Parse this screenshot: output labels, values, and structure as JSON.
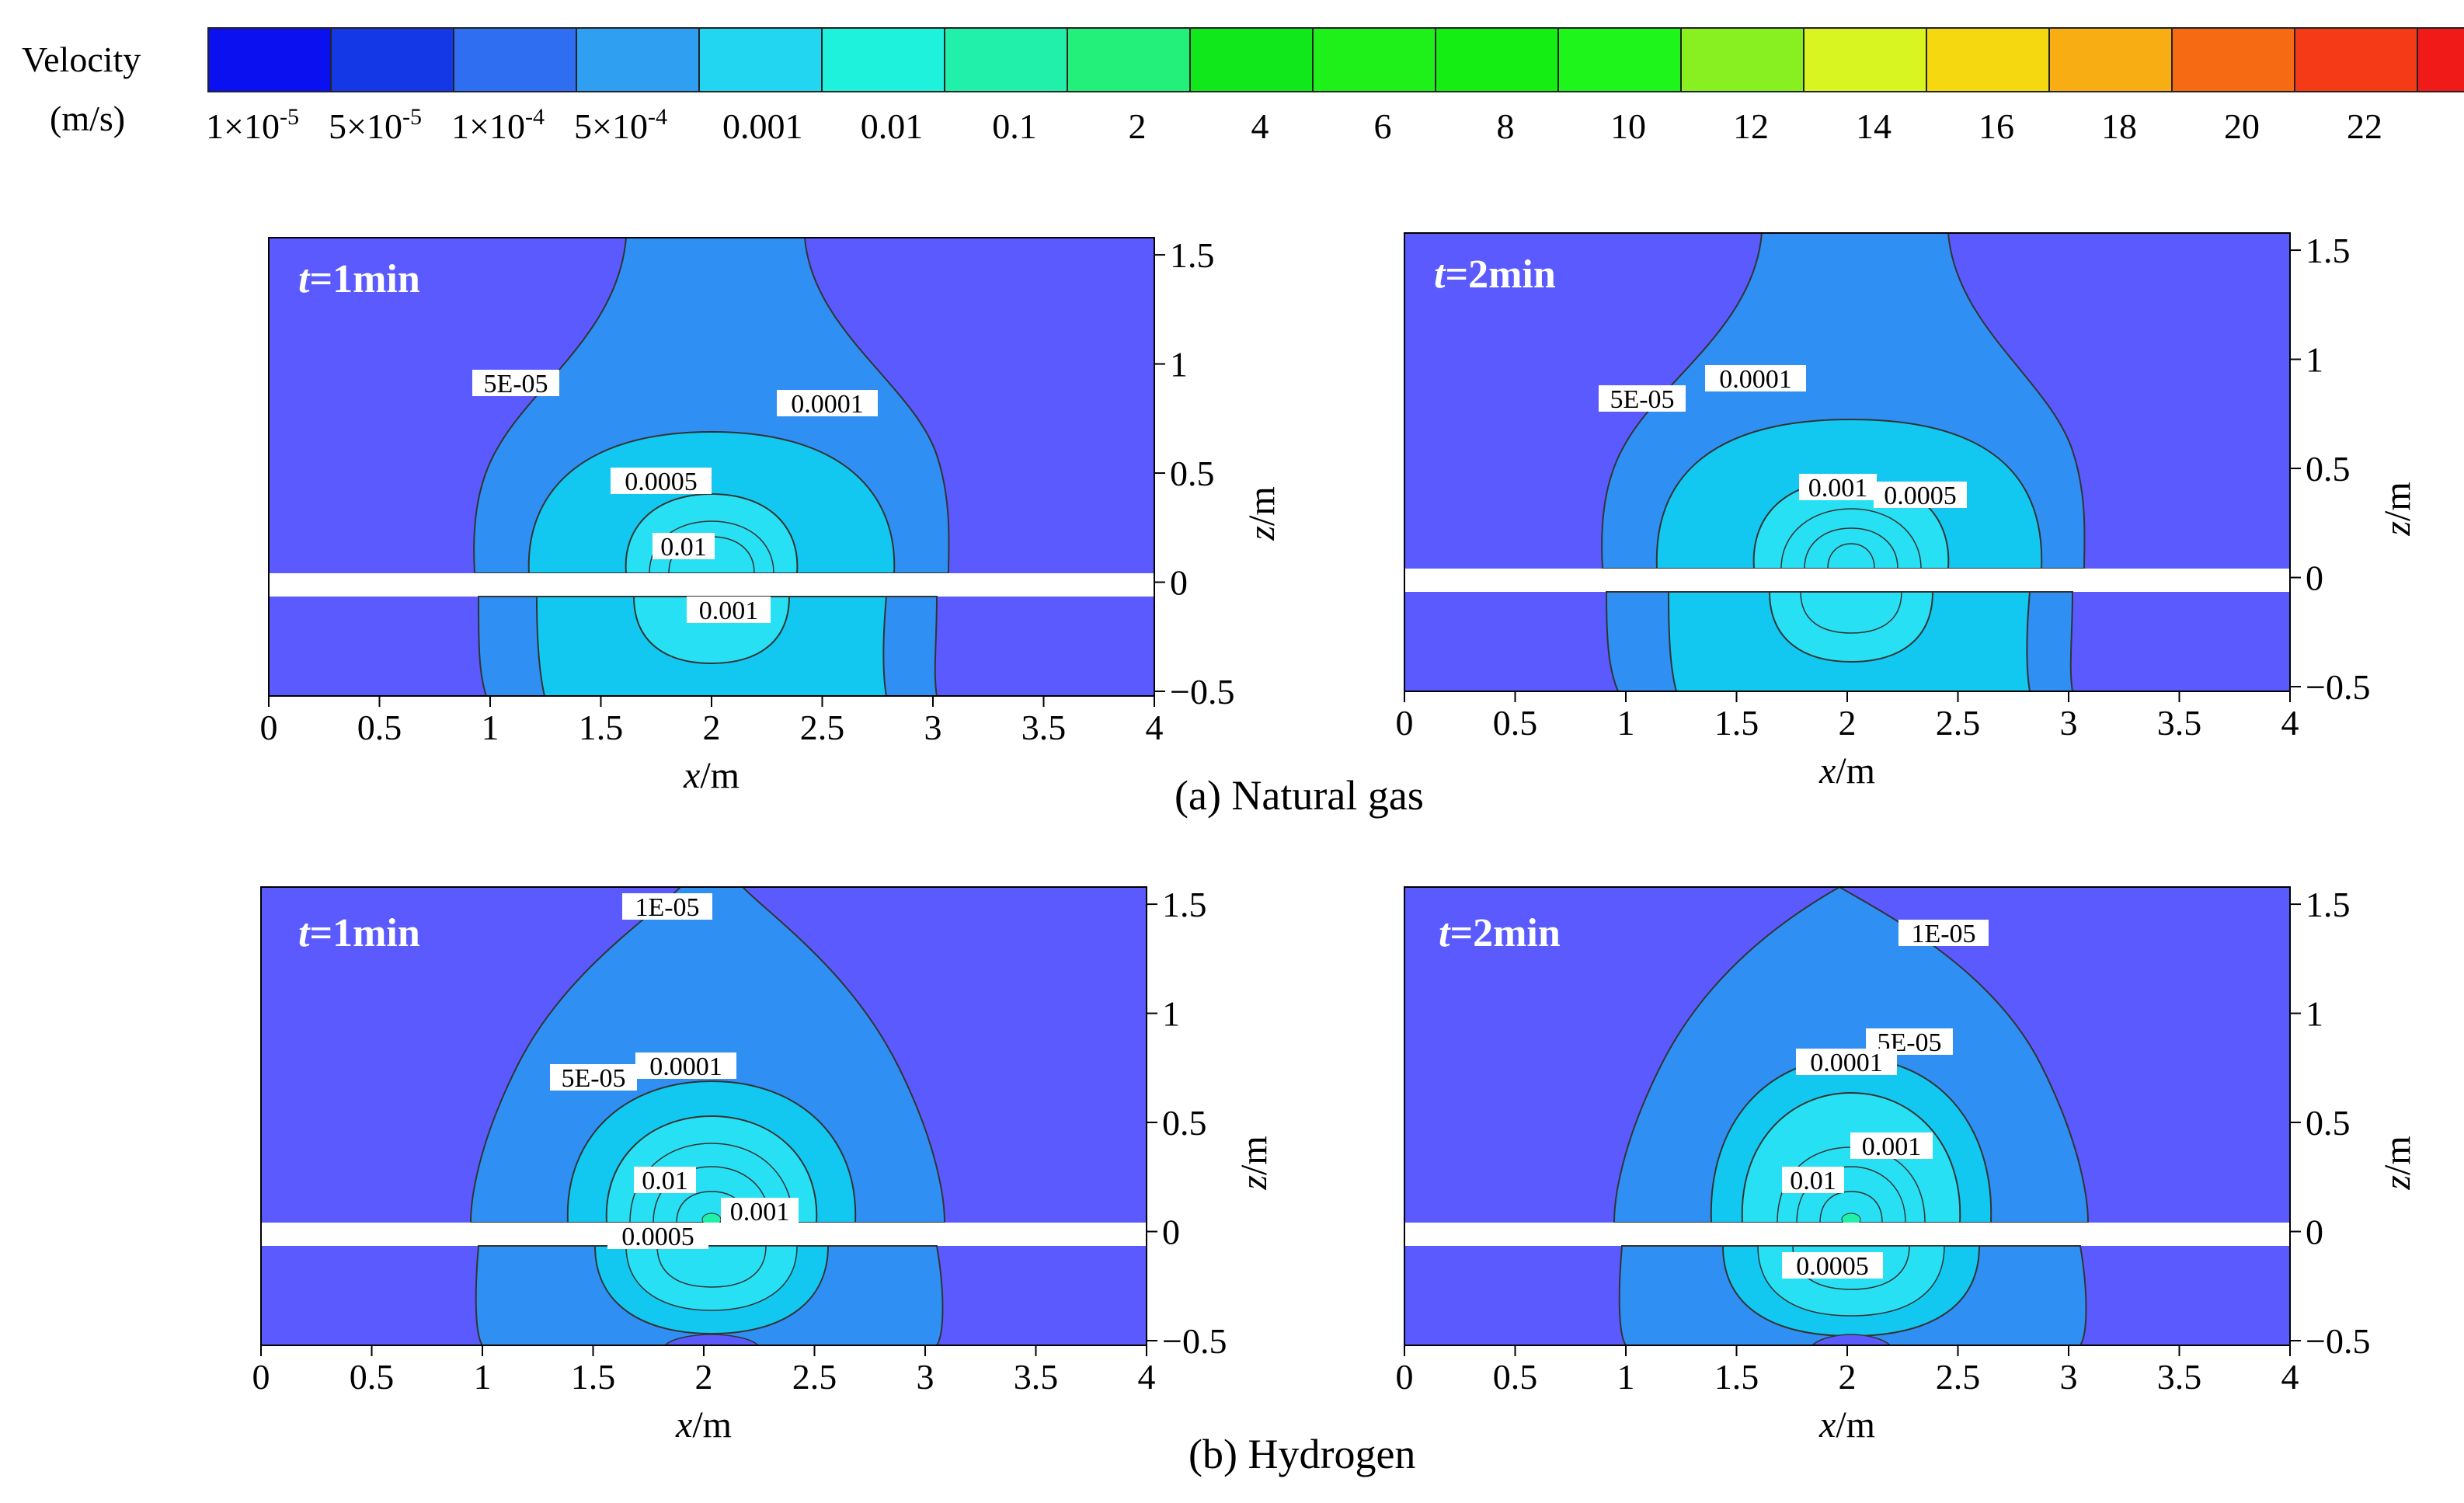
{
  "legend": {
    "title_line1": "Velocity",
    "title_line2": "(m/s)",
    "colors": [
      "#0a10f0",
      "#1438e6",
      "#2f6ef0",
      "#2f9ff2",
      "#22d6f2",
      "#1ff2dc",
      "#20f0aa",
      "#22f07a",
      "#10e81c",
      "#1ef01a",
      "#14ee12",
      "#1ef51a",
      "#88f020",
      "#d8f522",
      "#f5d810",
      "#f8ae12",
      "#f76a14",
      "#f43a16",
      "#f01a18"
    ],
    "mantissas": [
      "1×10",
      "5×10",
      "1×10",
      "5×10"
    ],
    "exponents": [
      "-5",
      "-5",
      "-4",
      "-4"
    ],
    "ticks": [
      "0.001",
      "0.01",
      "0.1",
      "2",
      "4",
      "6",
      "8",
      "10",
      "12",
      "14",
      "16",
      "18",
      "20",
      "22"
    ]
  },
  "field_colors": {
    "background": "#5a5aff",
    "level_5e5": "#2f8ff2",
    "level_1e4": "#12c8f0",
    "level_5e4": "#28e0f4",
    "level_1e3": "#22ecdc",
    "core": "#20f0aa",
    "pipe": "#ffffff"
  },
  "axes": {
    "x_ticks": [
      "0",
      "0.5",
      "1",
      "1.5",
      "2",
      "2.5",
      "3",
      "3.5",
      "4"
    ],
    "z_ticks": [
      "1.5",
      "1",
      "0.5",
      "0",
      "−0.5"
    ],
    "xlabel_var": "x",
    "xlabel_unit": "/m",
    "zlabel_var": "z",
    "zlabel_unit": "/m"
  },
  "panels": {
    "ng1": {
      "title_var": "t",
      "title_val": "=1min",
      "contour_labels": [
        "5E-05",
        "0.0001",
        "0.0005",
        "0.01",
        "0.001"
      ]
    },
    "ng2": {
      "title_var": "t",
      "title_val": "=2min",
      "contour_labels": [
        "5E-05",
        "0.0001",
        "0.001",
        "0.0005"
      ]
    },
    "h1": {
      "title_var": "t",
      "title_val": "=1min",
      "contour_labels": [
        "1E-05",
        "5E-05",
        "0.0001",
        "0.01",
        "0.001",
        "0.0005"
      ]
    },
    "h2": {
      "title_var": "t",
      "title_val": "=2min",
      "contour_labels": [
        "1E-05",
        "5E-05",
        "0.0001",
        "0.001",
        "0.01",
        "0.0005"
      ]
    }
  },
  "captions": {
    "natural_gas": "(a) Natural gas",
    "hydrogen": "(b) Hydrogen"
  }
}
